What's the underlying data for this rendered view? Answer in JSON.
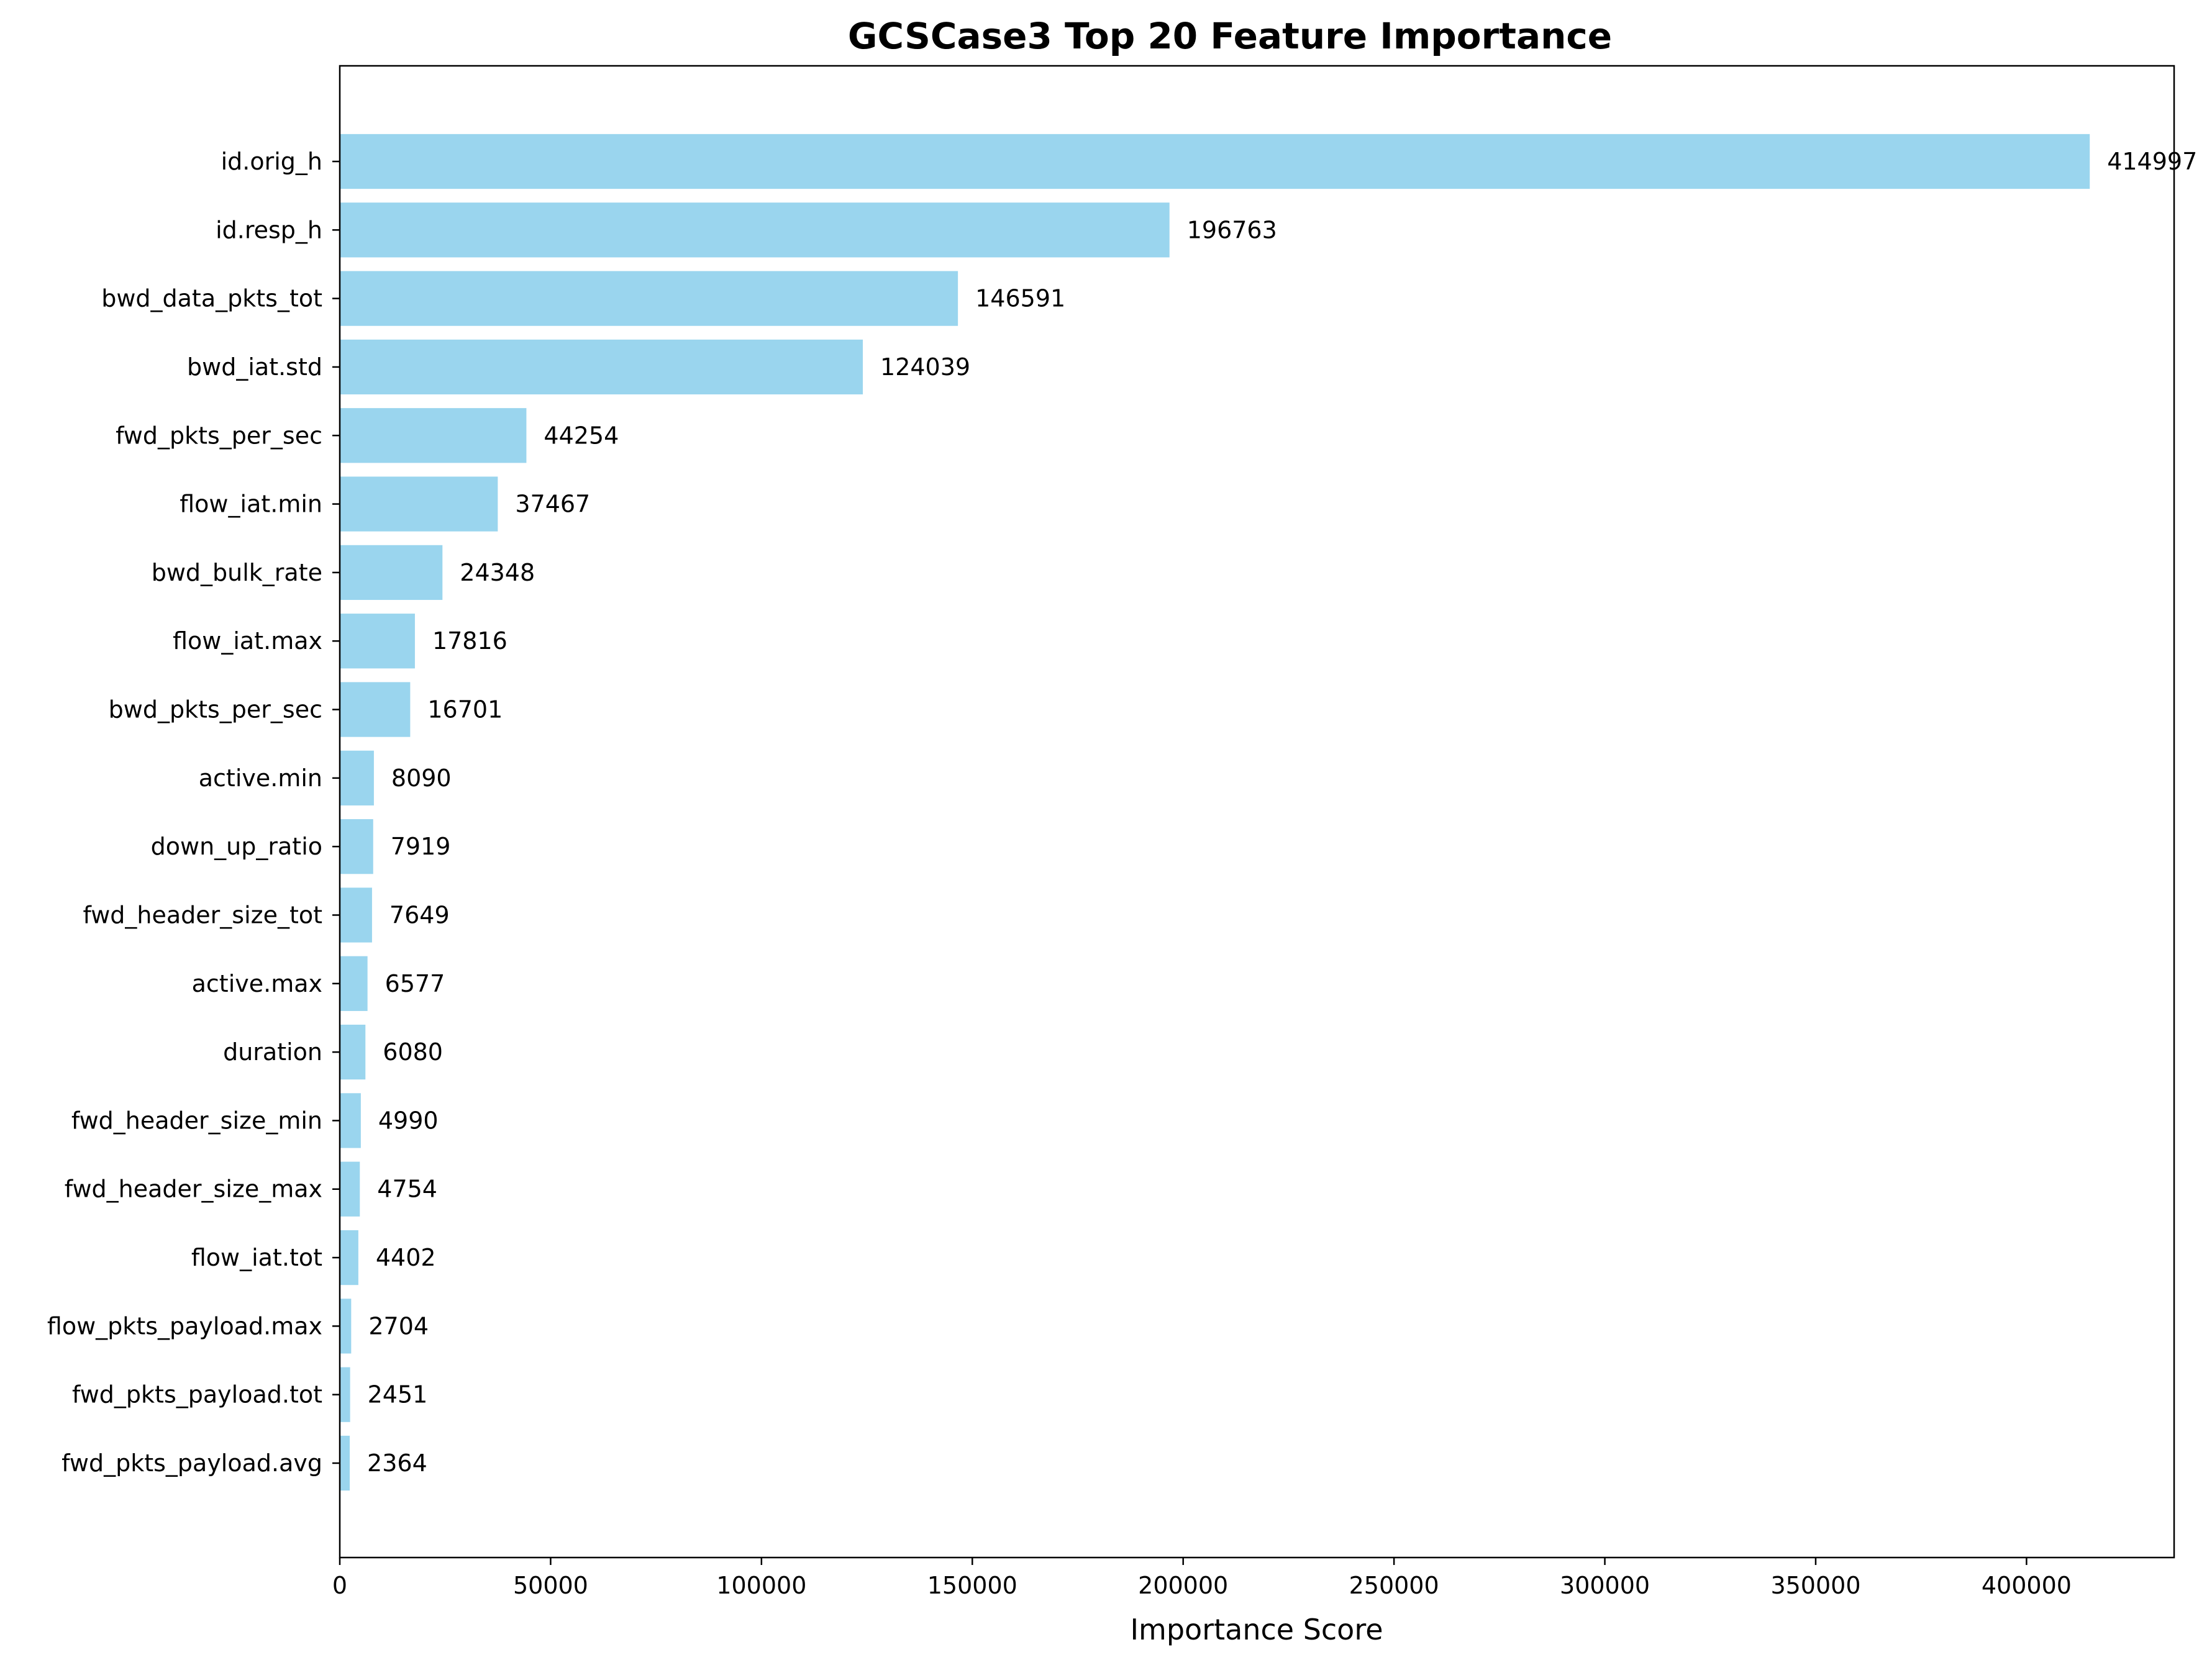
{
  "chart_data": {
    "type": "bar",
    "orientation": "horizontal",
    "title": "GCSCase3 Top 20 Feature Importance",
    "xlabel": "Importance Score",
    "ylabel": "",
    "xlim": [
      0,
      435000
    ],
    "xticks": [
      0,
      50000,
      100000,
      150000,
      200000,
      250000,
      300000,
      350000,
      400000
    ],
    "grid": false,
    "bar_color": "#9ad5ee",
    "categories": [
      "id.orig_h",
      "id.resp_h",
      "bwd_data_pkts_tot",
      "bwd_iat.std",
      "fwd_pkts_per_sec",
      "flow_iat.min",
      "bwd_bulk_rate",
      "flow_iat.max",
      "bwd_pkts_per_sec",
      "active.min",
      "down_up_ratio",
      "fwd_header_size_tot",
      "active.max",
      "duration",
      "fwd_header_size_min",
      "fwd_header_size_max",
      "flow_iat.tot",
      "flow_pkts_payload.max",
      "fwd_pkts_payload.tot",
      "fwd_pkts_payload.avg"
    ],
    "values": [
      414997,
      196763,
      146591,
      124039,
      44254,
      37467,
      24348,
      17816,
      16701,
      8090,
      7919,
      7649,
      6577,
      6080,
      4990,
      4754,
      4402,
      2704,
      2451,
      2364
    ]
  }
}
